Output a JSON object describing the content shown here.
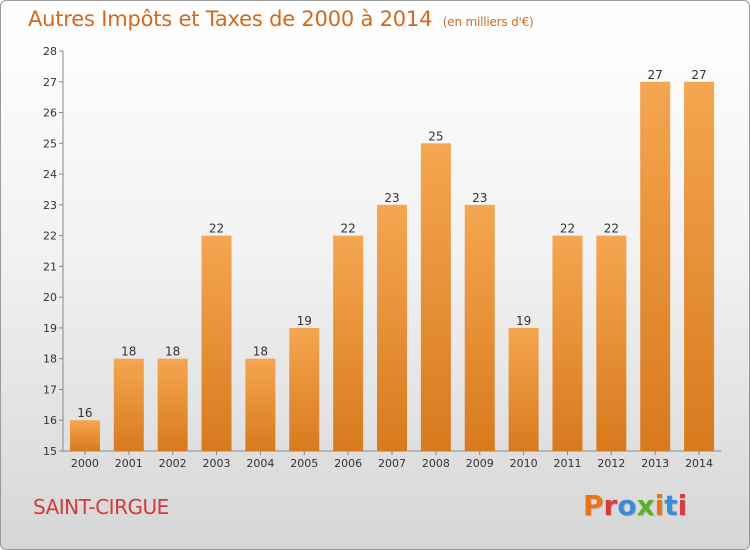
{
  "header": {
    "title": "Autres Impôts et Taxes de 2000 à 2014",
    "subtitle": "(en milliers d'€)"
  },
  "footer": {
    "place": "SAINT-CIRGUE",
    "logo_text": "Proxiti",
    "logo_colors": [
      "#e8731a",
      "#d93a3a",
      "#3b8bd6",
      "#5ab02f",
      "#e8731a",
      "#3b8bd6",
      "#d93a3a"
    ]
  },
  "colors": {
    "bar_light": "#f5a650",
    "bar_dark": "#d87a1e",
    "axis": "#888888",
    "gridline": "#cccccc"
  },
  "chart_data": {
    "type": "bar",
    "title": "Autres Impôts et Taxes de 2000 à 2014",
    "subtitle": "(en milliers d'€)",
    "categories": [
      "2000",
      "2001",
      "2002",
      "2003",
      "2004",
      "2005",
      "2006",
      "2007",
      "2008",
      "2009",
      "2010",
      "2011",
      "2012",
      "2013",
      "2014"
    ],
    "values": [
      16,
      18,
      18,
      22,
      18,
      19,
      22,
      23,
      25,
      23,
      19,
      22,
      22,
      27,
      27
    ],
    "ylim": [
      15,
      28
    ],
    "yticks": [
      15,
      16,
      17,
      18,
      19,
      20,
      21,
      22,
      23,
      24,
      25,
      26,
      27,
      28
    ],
    "xlabel": "",
    "ylabel": "",
    "grid": false,
    "data_labels": true
  }
}
